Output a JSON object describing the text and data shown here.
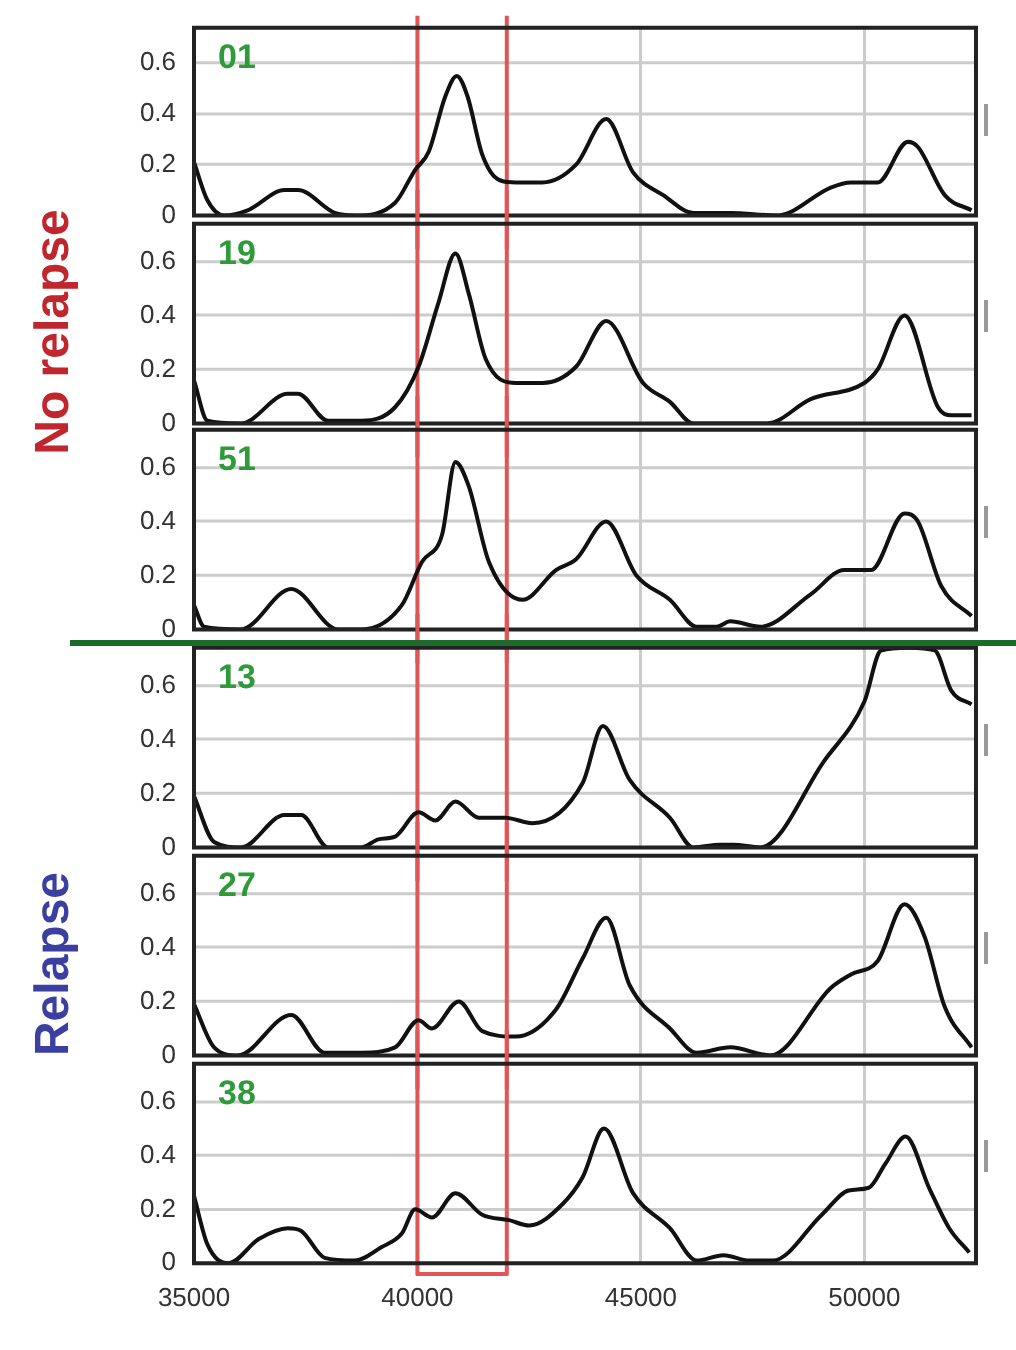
{
  "chart_data": [
    {
      "type": "line",
      "title": "01",
      "color": "#111111",
      "marker": "none",
      "grid": true,
      "tick_labels": "y",
      "xlim": [
        35000,
        52500
      ],
      "xticks": [
        35000,
        40000,
        45000,
        50000
      ],
      "ylim": [
        0,
        0.74
      ],
      "yticks": [
        0,
        0.2,
        0.4,
        0.6
      ],
      "ref_lines": [
        {
          "axis": "x",
          "value": 40000,
          "color": "#e05555"
        },
        {
          "axis": "x",
          "value": 42000,
          "color": "#e05555"
        }
      ],
      "x": [
        35000,
        35300,
        35675,
        36200,
        37025,
        37325,
        38150,
        38600,
        39500,
        39950,
        40250,
        40625,
        40880,
        41120,
        41450,
        41825,
        42200,
        42800,
        43550,
        44225,
        44825,
        45500,
        46175,
        47000,
        48050,
        49250,
        49700,
        50300,
        50975,
        51200,
        51800,
        52400
      ],
      "values": [
        0.21,
        0.06,
        0,
        0.02,
        0.1,
        0.1,
        0.01,
        0,
        0.05,
        0.18,
        0.25,
        0.47,
        0.55,
        0.47,
        0.24,
        0.14,
        0.13,
        0.13,
        0.2,
        0.38,
        0.17,
        0.08,
        0.01,
        0.01,
        0,
        0.11,
        0.13,
        0.13,
        0.29,
        0.27,
        0.08,
        0.02
      ]
    },
    {
      "type": "line",
      "title": "19",
      "color": "#111111",
      "marker": "none",
      "grid": true,
      "tick_labels": "y",
      "xlim": [
        35000,
        52500
      ],
      "xticks": [
        35000,
        40000,
        45000,
        50000
      ],
      "ylim": [
        0,
        0.74
      ],
      "yticks": [
        0,
        0.2,
        0.4,
        0.6
      ],
      "ref_lines": [
        {
          "axis": "x",
          "value": 40000,
          "color": "#e05555"
        },
        {
          "axis": "x",
          "value": 42000,
          "color": "#e05555"
        }
      ],
      "annotations": [
        "No relapse"
      ],
      "x": [
        35000,
        35300,
        36050,
        37100,
        37325,
        38000,
        38750,
        39500,
        40025,
        40475,
        40850,
        41150,
        41525,
        42200,
        42800,
        43550,
        44225,
        45050,
        45650,
        46175,
        47825,
        48800,
        50000,
        50300,
        50900,
        51650,
        51950,
        52400
      ],
      "values": [
        0.16,
        0.01,
        0,
        0.11,
        0.11,
        0.01,
        0.01,
        0.06,
        0.21,
        0.45,
        0.63,
        0.48,
        0.24,
        0.15,
        0.15,
        0.21,
        0.38,
        0.15,
        0.08,
        0,
        0,
        0.09,
        0.15,
        0.2,
        0.4,
        0.06,
        0.03,
        0.03
      ]
    },
    {
      "type": "line",
      "title": "51",
      "color": "#111111",
      "marker": "none",
      "grid": true,
      "tick_labels": "y",
      "xlim": [
        35000,
        52500
      ],
      "xticks": [
        35000,
        40000,
        45000,
        50000
      ],
      "ylim": [
        0,
        0.74
      ],
      "yticks": [
        0,
        0.2,
        0.4,
        0.6
      ],
      "ref_lines": [
        {
          "axis": "x",
          "value": 40000,
          "color": "#e05555"
        },
        {
          "axis": "x",
          "value": 42000,
          "color": "#e05555"
        }
      ],
      "x": [
        35000,
        35225,
        36050,
        37175,
        38225,
        38750,
        39650,
        40100,
        40550,
        40850,
        41150,
        41600,
        42350,
        43100,
        43550,
        44225,
        44900,
        45650,
        46250,
        46700,
        47000,
        47675,
        48800,
        49550,
        50150,
        50900,
        51200,
        51725,
        52400
      ],
      "values": [
        0.09,
        0.01,
        0,
        0.15,
        0,
        0,
        0.09,
        0.25,
        0.35,
        0.62,
        0.53,
        0.25,
        0.11,
        0.22,
        0.26,
        0.4,
        0.2,
        0.11,
        0.01,
        0.01,
        0.03,
        0.01,
        0.13,
        0.22,
        0.22,
        0.43,
        0.4,
        0.16,
        0.05
      ]
    },
    {
      "type": "line",
      "title": "13",
      "color": "#111111",
      "marker": "none",
      "grid": true,
      "tick_labels": "y",
      "xlim": [
        35000,
        52500
      ],
      "xticks": [
        35000,
        40000,
        45000,
        50000
      ],
      "ylim": [
        0,
        0.74
      ],
      "yticks": [
        0,
        0.2,
        0.4,
        0.6
      ],
      "ref_lines": [
        {
          "axis": "x",
          "value": 40000,
          "color": "#e05555"
        },
        {
          "axis": "x",
          "value": 42000,
          "color": "#e05555"
        }
      ],
      "x": [
        35000,
        35450,
        36050,
        37025,
        37400,
        38000,
        38750,
        39125,
        39500,
        40025,
        40400,
        40850,
        41375,
        41975,
        42575,
        43700,
        44150,
        44750,
        45650,
        46175,
        46775,
        47075,
        47675,
        49100,
        50000,
        50375,
        51000,
        51575,
        51950,
        52400
      ],
      "values": [
        0.19,
        0.02,
        0,
        0.12,
        0.12,
        0,
        0,
        0.03,
        0.04,
        0.13,
        0.1,
        0.17,
        0.11,
        0.11,
        0.09,
        0.24,
        0.45,
        0.25,
        0.11,
        0,
        0.01,
        0.01,
        0,
        0.32,
        0.54,
        0.73,
        0.74,
        0.73,
        0.58,
        0.53
      ]
    },
    {
      "type": "line",
      "title": "27",
      "color": "#111111",
      "marker": "none",
      "grid": true,
      "tick_labels": "y",
      "xlim": [
        35000,
        52500
      ],
      "xticks": [
        35000,
        40000,
        45000,
        50000
      ],
      "ylim": [
        0,
        0.74
      ],
      "yticks": [
        0,
        0.2,
        0.4,
        0.6
      ],
      "ref_lines": [
        {
          "axis": "x",
          "value": 40000,
          "color": "#e05555"
        },
        {
          "axis": "x",
          "value": 42000,
          "color": "#e05555"
        }
      ],
      "annotations": [
        "Relapse"
      ],
      "x": [
        35000,
        35450,
        35975,
        37175,
        37925,
        38750,
        39500,
        40025,
        40325,
        40925,
        41450,
        42200,
        43100,
        43700,
        44225,
        44750,
        45650,
        46250,
        47000,
        47900,
        49250,
        49700,
        50300,
        50900,
        51350,
        51800,
        52400
      ],
      "values": [
        0.19,
        0.03,
        0,
        0.15,
        0.01,
        0.01,
        0.03,
        0.13,
        0.1,
        0.2,
        0.09,
        0.07,
        0.17,
        0.36,
        0.51,
        0.26,
        0.1,
        0.01,
        0.03,
        0,
        0.25,
        0.3,
        0.35,
        0.56,
        0.44,
        0.18,
        0.03
      ]
    },
    {
      "type": "line",
      "title": "38",
      "color": "#111111",
      "marker": "none",
      "grid": true,
      "xlim": [
        35000,
        52500
      ],
      "xticks": [
        35000,
        40000,
        45000,
        50000
      ],
      "ylim": [
        0,
        0.74
      ],
      "yticks": [
        0,
        0.2,
        0.4,
        0.6
      ],
      "ref_lines": [
        {
          "axis": "x",
          "value": 40000,
          "color": "#e05555"
        },
        {
          "axis": "x",
          "value": 42000,
          "color": "#e05555"
        }
      ],
      "x": [
        35000,
        35300,
        35775,
        36450,
        37100,
        37400,
        37925,
        38600,
        39200,
        39650,
        39950,
        40325,
        40850,
        41450,
        42050,
        42500,
        43250,
        43700,
        44175,
        44825,
        45650,
        46250,
        46850,
        47425,
        47950,
        49050,
        49650,
        50100,
        50475,
        50925,
        51450,
        51900,
        52350
      ],
      "values": [
        0.25,
        0.07,
        0,
        0.09,
        0.13,
        0.12,
        0.02,
        0.01,
        0.06,
        0.11,
        0.2,
        0.17,
        0.26,
        0.18,
        0.16,
        0.14,
        0.22,
        0.32,
        0.5,
        0.26,
        0.13,
        0.01,
        0.03,
        0.01,
        0.01,
        0.18,
        0.27,
        0.28,
        0.37,
        0.47,
        0.28,
        0.13,
        0.04
      ]
    }
  ]
}
